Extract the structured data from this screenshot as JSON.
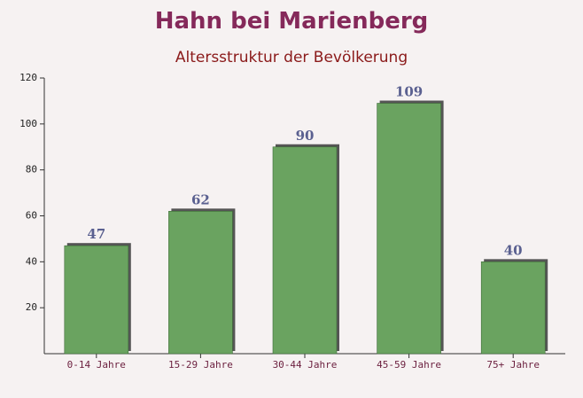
{
  "chart_data": {
    "type": "bar",
    "title": "Hahn bei Marienberg",
    "subtitle": "Altersstruktur der Bevölkerung",
    "categories": [
      "0-14 Jahre",
      "15-29 Jahre",
      "30-44 Jahre",
      "45-59 Jahre",
      "75+ Jahre"
    ],
    "values": [
      47,
      62,
      90,
      109,
      40
    ],
    "color": "#6aa360",
    "ylim": [
      0,
      120
    ],
    "yticks": [
      20,
      40,
      60,
      80,
      100,
      120
    ]
  }
}
